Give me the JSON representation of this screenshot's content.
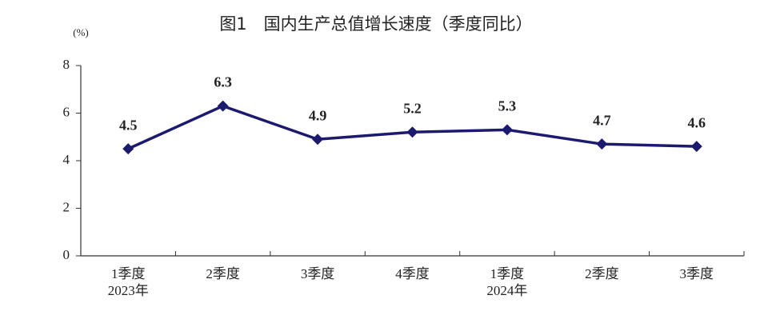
{
  "chart_data": {
    "type": "line",
    "title": "图1　国内生产总值增长速度（季度同比）",
    "y_label": "(%)",
    "categories": [
      "1季度\n2023年",
      "2季度",
      "3季度",
      "4季度",
      "1季度\n2024年",
      "2季度",
      "3季度"
    ],
    "series": [
      {
        "name": "国内生产总值增长速度",
        "color": "#1b1a6e",
        "values": [
          4.5,
          6.3,
          4.9,
          5.2,
          5.3,
          4.7,
          4.6
        ]
      }
    ],
    "ylim": [
      0,
      8
    ],
    "yticks": [
      0,
      2,
      4,
      6,
      8
    ],
    "grid": false,
    "data_labels": true
  }
}
